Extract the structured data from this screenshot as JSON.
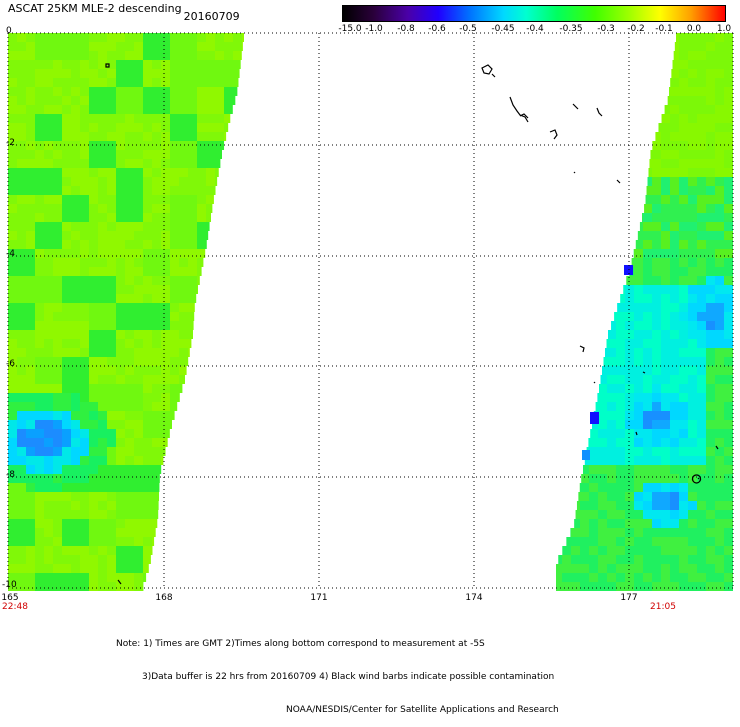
{
  "header": {
    "title": "ASCAT 25KM MLE-2 descending",
    "date": "20160709"
  },
  "colorbar": {
    "labels": [
      "-15.0",
      "-1.0",
      "-0.8",
      "-0.6",
      "-0.5",
      "-0.45",
      "-0.4",
      "-0.35",
      "-0.3",
      "-0.2",
      "-0.1",
      "0.0",
      "1.0"
    ],
    "colors": [
      "#1a001a",
      "#3a0058",
      "#5a0098",
      "#3000d8",
      "#0040ff",
      "#0090ff",
      "#00e0ff",
      "#00ffb0",
      "#00ff40",
      "#60ff00",
      "#c0ff00",
      "#ffff00",
      "#ffb000",
      "#ff6000",
      "#ff0000"
    ]
  },
  "axes": {
    "lat_labels": [
      "0",
      "-2",
      "-4",
      "-6",
      "-8",
      "-10"
    ],
    "lon_labels": [
      "165",
      "168",
      "171",
      "174",
      "177"
    ],
    "time_left": "22:48",
    "time_right": "21:05"
  },
  "notes": {
    "line1": "Note: 1) Times are GMT 2)Times along bottom correspond to measurement at -5S",
    "line2": "3)Data buffer is 22 hrs from 20160709 4) Black wind barbs indicate possible contamination",
    "line3": "NOAA/NESDIS/Center for Satellite Applications and Research"
  }
}
